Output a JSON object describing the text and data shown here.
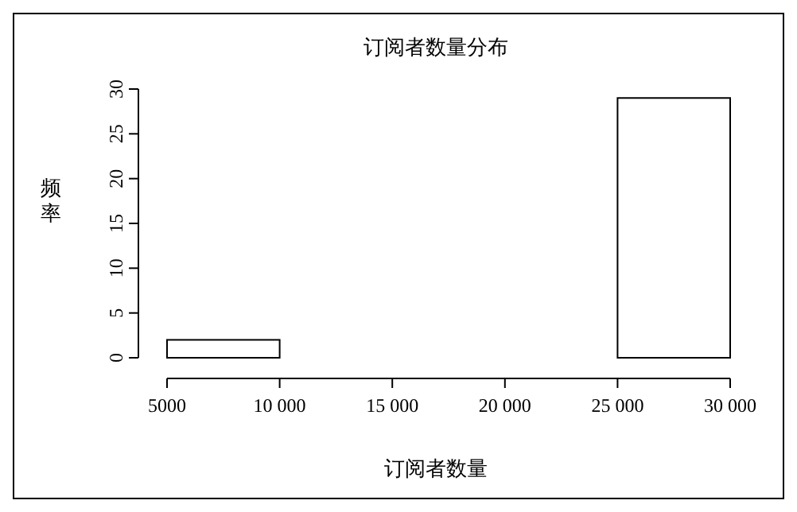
{
  "chart_data": {
    "type": "histogram",
    "title": "订阅者数量分布",
    "xlabel": "订阅者数量",
    "ylabel": "频率",
    "bins": [
      5000,
      10000,
      15000,
      20000,
      25000,
      30000
    ],
    "values": [
      2,
      0,
      0,
      0,
      29
    ],
    "color": "#ffffff",
    "xlim": [
      5000,
      30000
    ],
    "ylim": [
      0,
      30
    ],
    "xticks": [
      5000,
      {
        "value": 10000,
        "label": "10 000"
      },
      {
        "value": 15000,
        "label": "15 000"
      },
      {
        "value": 20000,
        "label": "20 000"
      },
      {
        "value": 25000,
        "label": "25 000"
      },
      {
        "value": 30000,
        "label": "30 000"
      }
    ],
    "yticks": [
      0,
      5,
      10,
      15,
      20,
      25,
      30
    ]
  }
}
